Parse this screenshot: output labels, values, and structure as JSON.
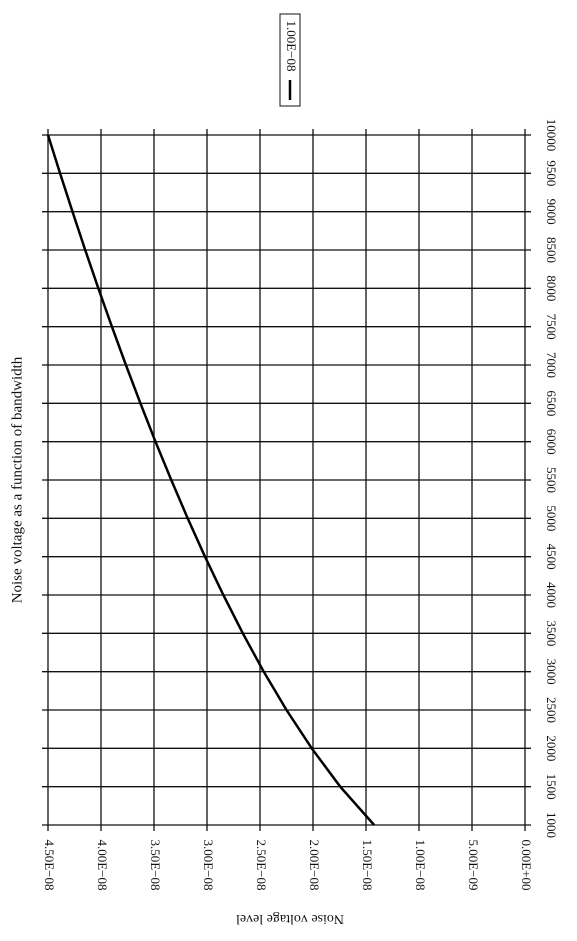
{
  "chart_data": {
    "type": "line",
    "title": "Noise voltage as a function of bandwidth",
    "ylabel": "Noise voltage level",
    "x": [
      1000,
      1500,
      2000,
      2500,
      3000,
      3500,
      4000,
      4500,
      5000,
      5500,
      6000,
      6500,
      7000,
      7500,
      8000,
      8500,
      9000,
      9500,
      10000
    ],
    "series": [
      {
        "name": "1.00E−08",
        "color": "#000000",
        "values": [
          1.423e-08,
          1.743e-08,
          2.012e-08,
          2.25e-08,
          2.465e-08,
          2.662e-08,
          2.846e-08,
          3.019e-08,
          3.182e-08,
          3.337e-08,
          3.486e-08,
          3.628e-08,
          3.765e-08,
          3.897e-08,
          4.025e-08,
          4.149e-08,
          4.269e-08,
          4.386e-08,
          4.5e-08
        ]
      }
    ],
    "xlim": [
      1000,
      10000
    ],
    "xticks": [
      1000,
      1500,
      2000,
      2500,
      3000,
      3500,
      4000,
      4500,
      5000,
      5500,
      6000,
      6500,
      7000,
      7500,
      8000,
      8500,
      9000,
      9500,
      10000
    ],
    "ylim": [
      0,
      4.5e-08
    ],
    "yticks": [
      {
        "value": 0,
        "label": "0.00E+00"
      },
      {
        "value": 5e-09,
        "label": "5.00E−09"
      },
      {
        "value": 1e-08,
        "label": "1.00E−08"
      },
      {
        "value": 1.5e-08,
        "label": "1.50E−08"
      },
      {
        "value": 2e-08,
        "label": "2.00E−08"
      },
      {
        "value": 2.5e-08,
        "label": "2.50E−08"
      },
      {
        "value": 3e-08,
        "label": "3.00E−08"
      },
      {
        "value": 3.5e-08,
        "label": "3.50E−08"
      },
      {
        "value": 4e-08,
        "label": "4.00E−08"
      },
      {
        "value": 4.5e-08,
        "label": "4.50E−08"
      }
    ],
    "grid": true
  }
}
